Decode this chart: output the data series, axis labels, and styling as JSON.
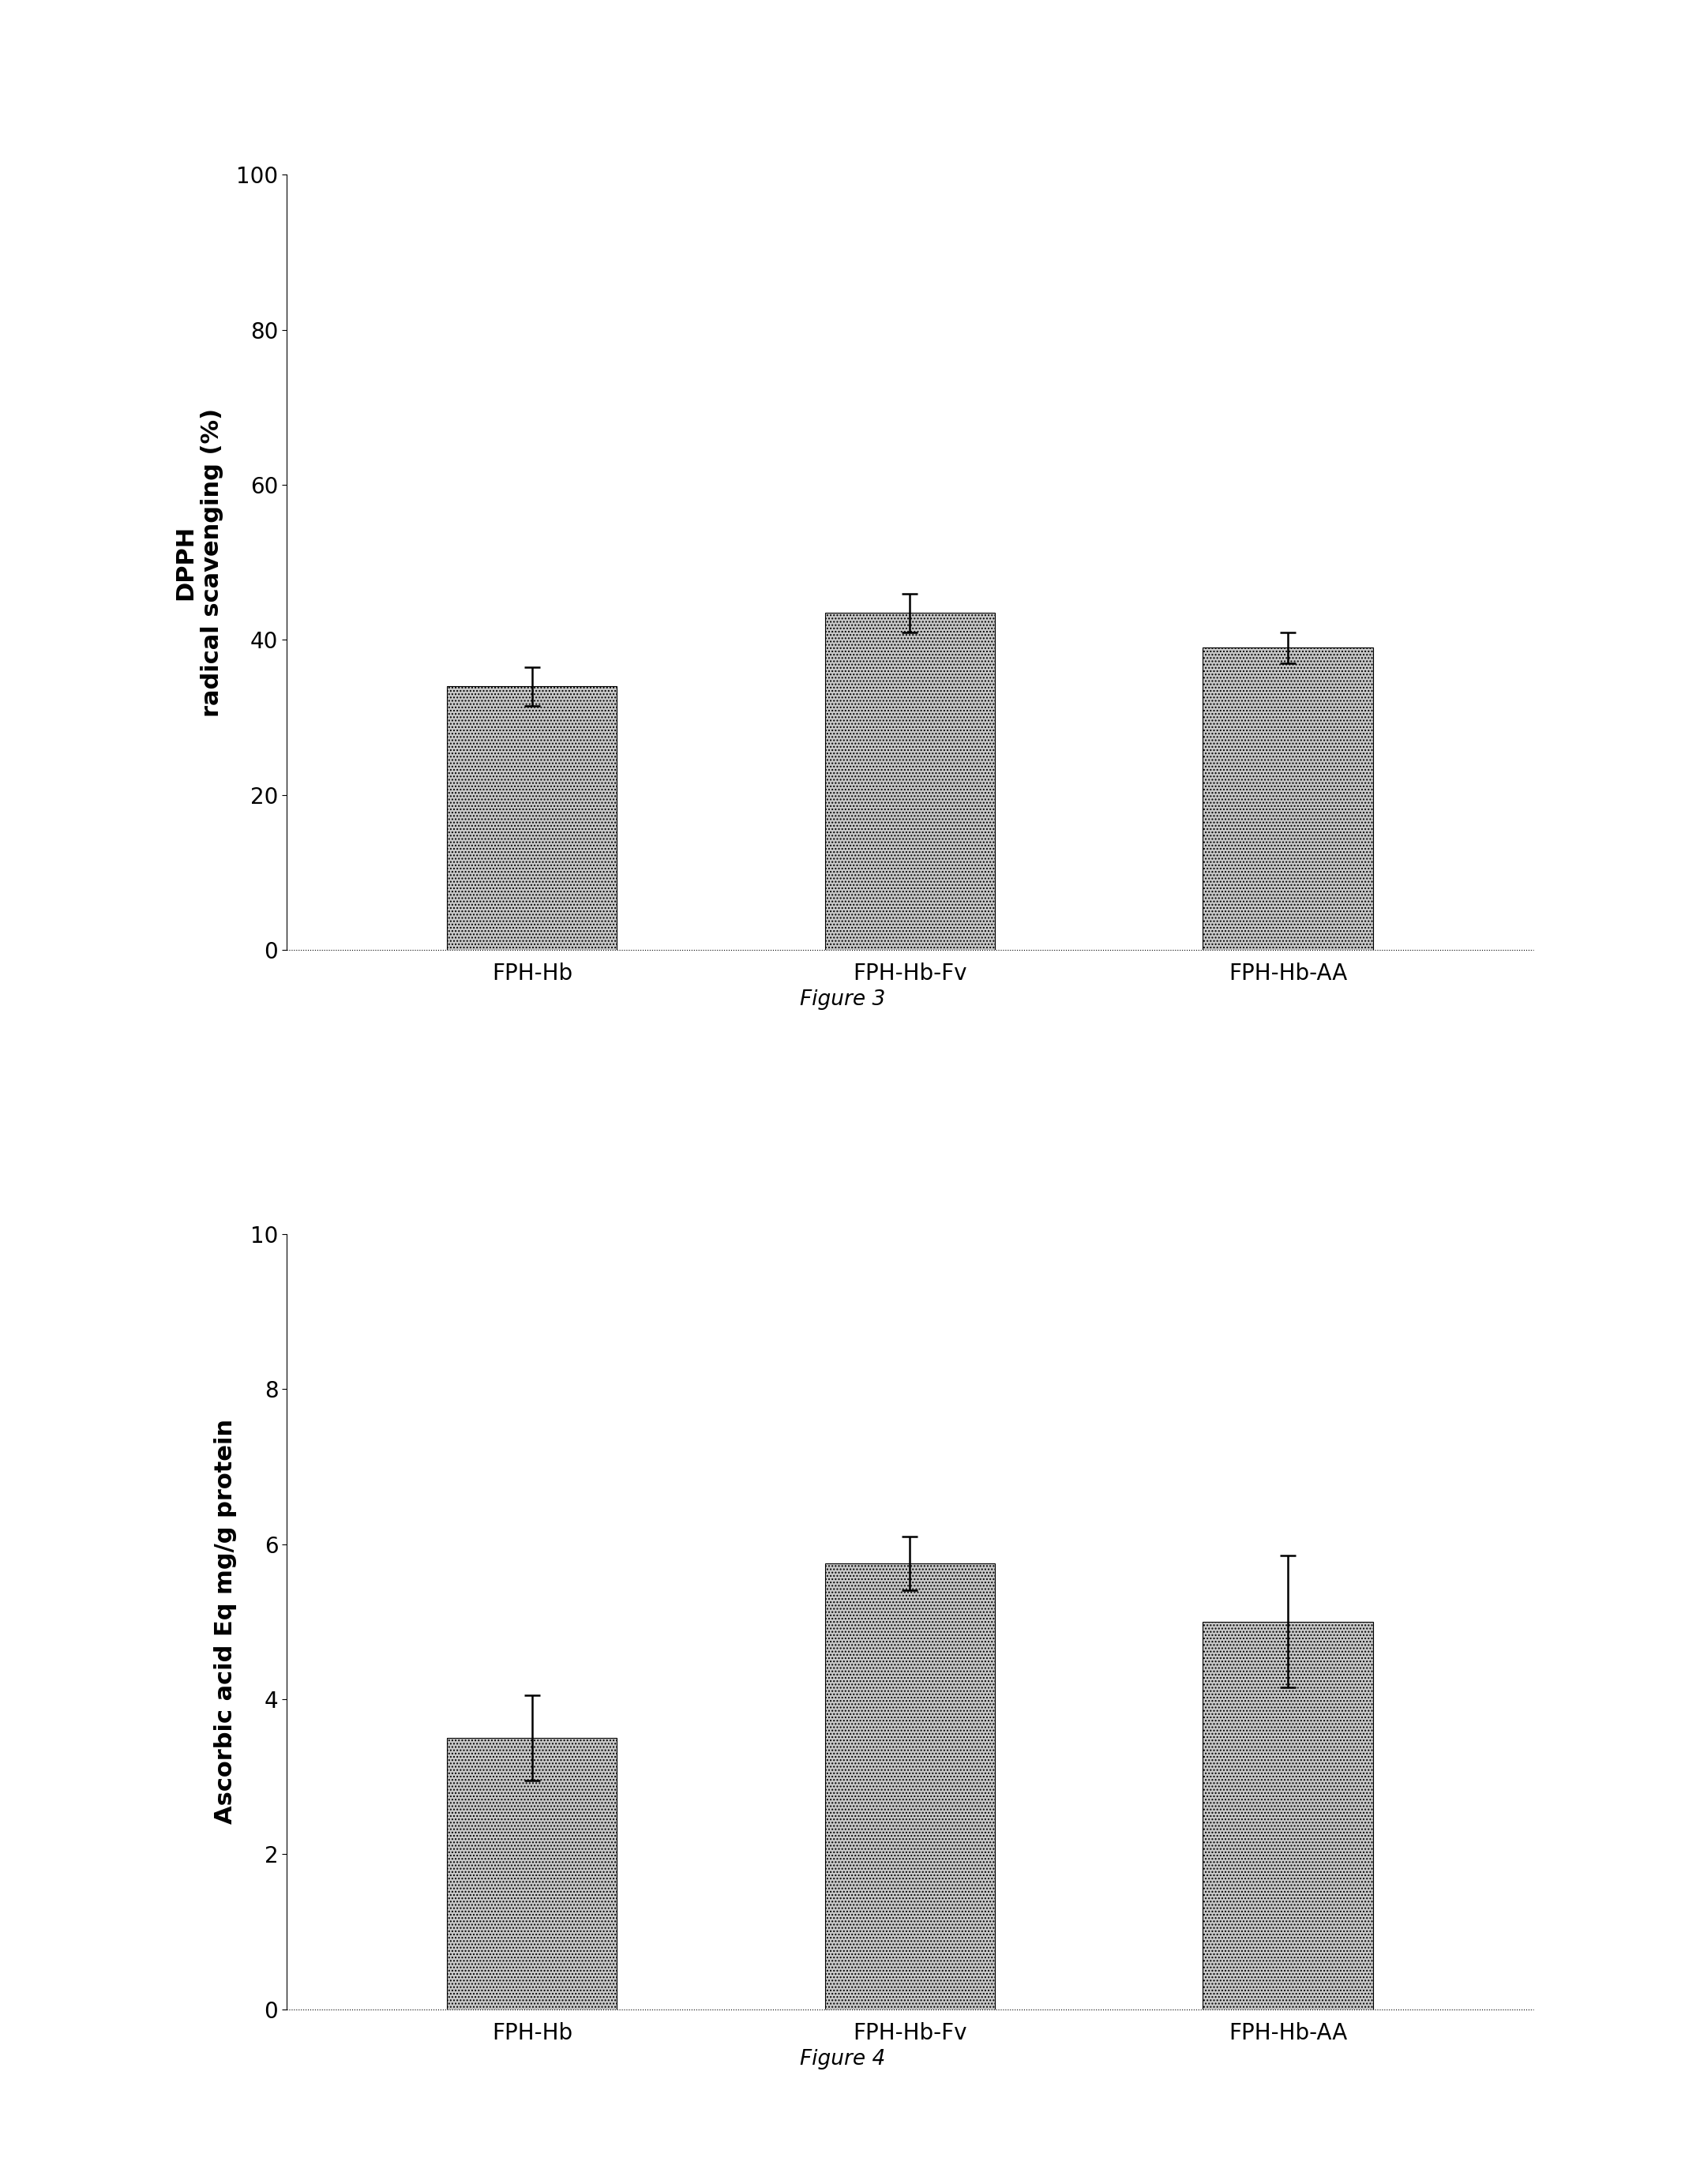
{
  "fig3": {
    "categories": [
      "FPH-Hb",
      "FPH-Hb-Fv",
      "FPH-Hb-AA"
    ],
    "values": [
      34.0,
      43.5,
      39.0
    ],
    "errors": [
      2.5,
      2.5,
      2.0
    ],
    "ylabel_line1": "DPPH",
    "ylabel_line2": "radical scavenging (%)",
    "ylim": [
      0,
      100
    ],
    "yticks": [
      0,
      20,
      40,
      60,
      80,
      100
    ],
    "caption": "Figure 3",
    "bar_color": "#c8c8c8",
    "bar_width": 0.45
  },
  "fig4": {
    "categories": [
      "FPH-Hb",
      "FPH-Hb-Fv",
      "FPH-Hb-AA"
    ],
    "values": [
      3.5,
      5.75,
      5.0
    ],
    "errors": [
      0.55,
      0.35,
      0.85
    ],
    "ylabel": "Ascorbic acid Eq mg/g protein",
    "ylim": [
      0,
      10
    ],
    "yticks": [
      0,
      2,
      4,
      6,
      8,
      10
    ],
    "caption": "Figure 4",
    "bar_color": "#c8c8c8",
    "bar_width": 0.45
  },
  "background_color": "#ffffff",
  "axis_label_fontsize": 22,
  "tick_fontsize": 20,
  "caption_fontsize": 19,
  "xtick_fontsize": 20,
  "error_capsize": 7,
  "error_linewidth": 1.8
}
